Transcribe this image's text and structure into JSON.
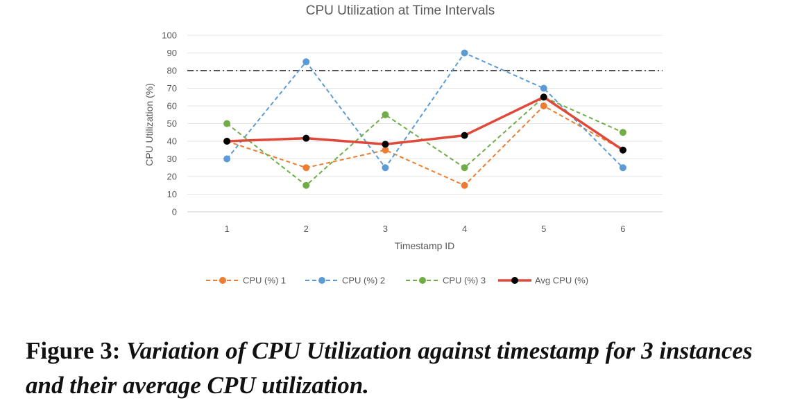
{
  "chart_data": {
    "type": "line",
    "title": "CPU Utilization at Time Intervals",
    "xlabel": "Timestamp ID",
    "ylabel": "CPU Utilization (%)",
    "ylim": [
      0,
      100
    ],
    "yticks": [
      0,
      10,
      20,
      30,
      40,
      50,
      60,
      70,
      80,
      90,
      100
    ],
    "categories": [
      "1",
      "2",
      "3",
      "4",
      "5",
      "6"
    ],
    "grid": true,
    "legend_position": "bottom",
    "threshold": {
      "value": 80,
      "style": "dash-dot",
      "color": "#1a1a1a"
    },
    "series": [
      {
        "name": "CPU (%) 1",
        "values": [
          40,
          25,
          35,
          15,
          60,
          35
        ],
        "color": "#ED7D31",
        "style": "dashed"
      },
      {
        "name": "CPU (%) 2",
        "values": [
          30,
          85,
          25,
          90,
          70,
          25
        ],
        "color": "#5B9BD5",
        "style": "dashed"
      },
      {
        "name": "CPU (%) 3",
        "values": [
          50,
          15,
          55,
          25,
          65,
          45
        ],
        "color": "#70AD47",
        "style": "dashed"
      },
      {
        "name": "Avg CPU (%)",
        "values": [
          40,
          41.7,
          38.3,
          43.3,
          65,
          35
        ],
        "color": "#E0483A",
        "marker_color": "#000000",
        "style": "solid"
      }
    ]
  },
  "caption": {
    "lead": "Figure 3:",
    "text": "Variation of CPU Utilization against timestamp for 3 instances and their average CPU utilization."
  }
}
